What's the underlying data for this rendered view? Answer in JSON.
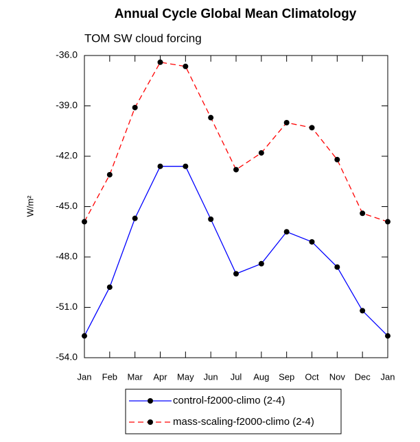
{
  "chart_data": {
    "type": "line",
    "title": "Annual Cycle Global Mean Climatology",
    "subtitle": "TOM SW cloud forcing",
    "ylabel": "W/m²",
    "categories": [
      "Jan",
      "Feb",
      "Mar",
      "Apr",
      "May",
      "Jun",
      "Jul",
      "Aug",
      "Sep",
      "Oct",
      "Nov",
      "Dec",
      "Jan"
    ],
    "series": [
      {
        "name": "control-f2000-climo (2-4)",
        "color": "#0000ff",
        "dash": false,
        "values": [
          -52.7,
          -49.8,
          -45.7,
          -42.6,
          -42.6,
          -45.75,
          -49.0,
          -48.4,
          -46.5,
          -47.1,
          -48.6,
          -51.2,
          -52.7
        ]
      },
      {
        "name": "mass-scaling-f2000-climo (2-4)",
        "color": "#ff0000",
        "dash": true,
        "values": [
          -45.9,
          -43.1,
          -39.1,
          -36.4,
          -36.65,
          -39.7,
          -42.8,
          -41.8,
          -40.0,
          -40.3,
          -42.2,
          -45.4,
          -45.9
        ]
      }
    ],
    "ylim": [
      -54,
      -36
    ],
    "yticks": [
      {
        "value": -54,
        "label": "-54.0"
      },
      {
        "value": -51,
        "label": "-51.0"
      },
      {
        "value": -48,
        "label": "-48.0"
      },
      {
        "value": -45,
        "label": "-45.0"
      },
      {
        "value": -42,
        "label": "-42.0"
      },
      {
        "value": -39,
        "label": "-39.0"
      },
      {
        "value": -36,
        "label": "-36.0"
      }
    ],
    "grid": false,
    "legend": "bottom"
  }
}
